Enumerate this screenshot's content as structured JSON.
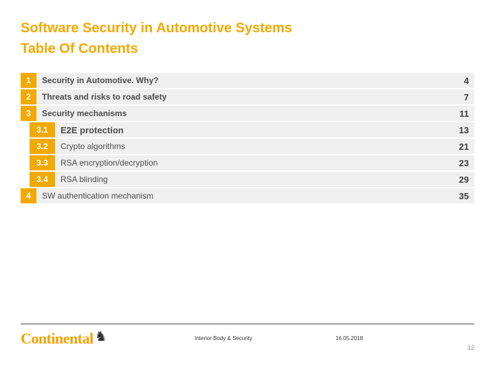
{
  "colors": {
    "accent": "#F2A900",
    "row_background": "#EFEFEF",
    "text": "#4B4B4B"
  },
  "title": {
    "line1": "Software Security in Automotive Systems",
    "line2": "Table Of Contents"
  },
  "toc": {
    "items": [
      {
        "num": "1",
        "label": "Security in Automotive. Why?",
        "page": "4",
        "level": 1,
        "bold": true
      },
      {
        "num": "2",
        "label": "Threats and risks to road safety",
        "page": "7",
        "level": 1,
        "bold": true
      },
      {
        "num": "3",
        "label": "Security mechanisms",
        "page": "11",
        "level": 1,
        "bold": true
      },
      {
        "num": "3.1",
        "label": "E2E protection",
        "page": "13",
        "level": 2,
        "bold": true
      },
      {
        "num": "3.2",
        "label": "Crypto algorithms",
        "page": "21",
        "level": 2,
        "bold": false
      },
      {
        "num": "3.3",
        "label": "RSA encryption/decryption",
        "page": "23",
        "level": 2,
        "bold": false
      },
      {
        "num": "3.4",
        "label": "RSA blinding",
        "page": "29",
        "level": 2,
        "bold": false
      },
      {
        "num": "4",
        "label": "SW authentication mechanism",
        "page": "35",
        "level": 1,
        "bold": false
      }
    ]
  },
  "footer": {
    "logo_text": "Continental",
    "department": "Interior Body & Security",
    "date": "16.05.2018",
    "page_number": "12"
  }
}
